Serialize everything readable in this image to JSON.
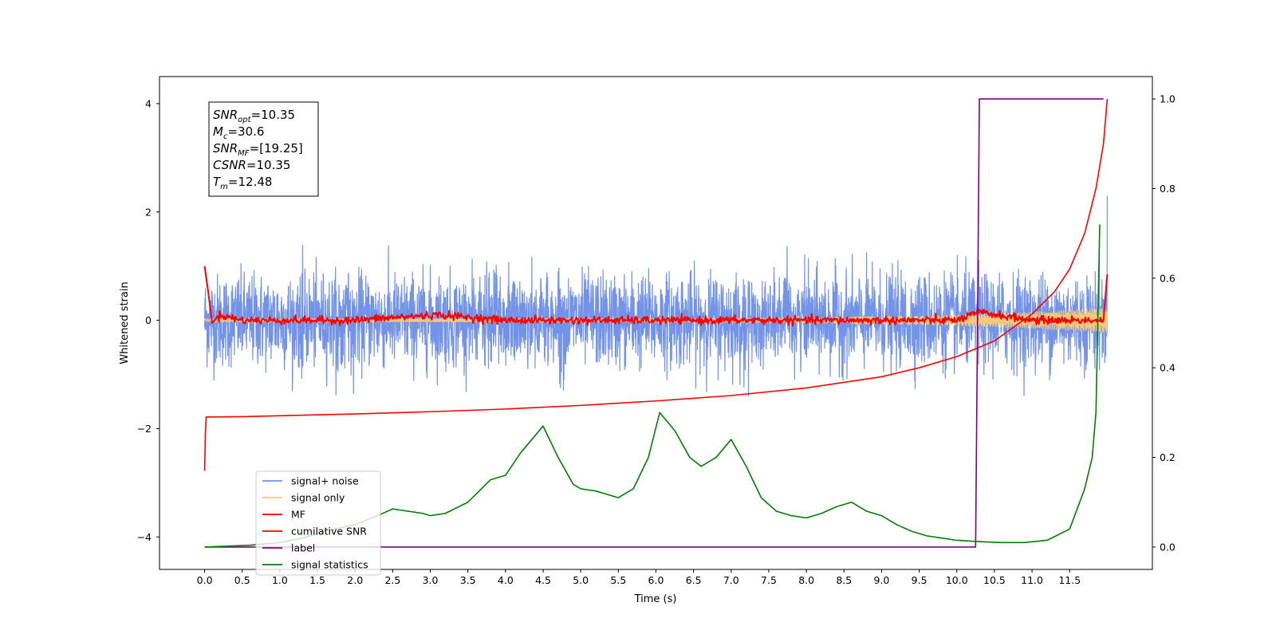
{
  "chart_data": {
    "type": "line",
    "xlabel": "Time (s)",
    "ylabel_left": "Whitened strain",
    "ylabel_right": "",
    "xlim": [
      -0.6,
      12.6
    ],
    "ylim_left": [
      -4.6,
      4.5
    ],
    "ylim_right": [
      -0.05,
      1.05
    ],
    "grid": false,
    "legend_placement": "lower-left",
    "x_ticks": [
      0.0,
      0.5,
      1.0,
      1.5,
      2.0,
      2.5,
      3.0,
      3.5,
      4.0,
      4.5,
      5.0,
      5.5,
      6.0,
      6.5,
      7.0,
      7.5,
      8.0,
      8.5,
      9.0,
      9.5,
      10.0,
      10.5,
      11.0,
      11.5
    ],
    "y_ticks_left": [
      -4,
      -2,
      0,
      2,
      4
    ],
    "y_ticks_right": [
      0.0,
      0.2,
      0.4,
      0.6,
      0.8,
      1.0
    ],
    "annotation_box": [
      {
        "sym": "SNR",
        "sub": "opt",
        "val": "=10.35"
      },
      {
        "sym": "M",
        "sub": "c",
        "val": "=30.6"
      },
      {
        "sym": "SNR",
        "sub": "MF",
        "val": "=[19.25]"
      },
      {
        "sym": "CSNR",
        "sub": "",
        "val": "=10.35"
      },
      {
        "sym": "T",
        "sub": "m",
        "val": "=12.48"
      }
    ],
    "series": [
      {
        "name": "signal+ noise",
        "color": "#7393e8",
        "axis": "left",
        "kind": "noise",
        "x_range": [
          0.0,
          12.0
        ],
        "amplitude": 0.45,
        "peak_abs": 1.4
      },
      {
        "name": "signal only",
        "color": "#f4c97a",
        "axis": "left",
        "kind": "chirp",
        "x_range": [
          0.0,
          12.0
        ],
        "amplitude_end": 0.2
      },
      {
        "name": "MF",
        "color": "#ff0000",
        "axis": "left",
        "kind": "mf",
        "x": [
          0.0,
          0.05,
          0.1,
          0.2,
          0.5,
          1.0,
          2.0,
          2.5,
          3.1,
          4.0,
          5.0,
          6.0,
          7.0,
          8.0,
          9.0,
          10.0,
          10.3,
          11.0,
          11.5,
          11.95,
          12.0
        ],
        "y": [
          1.0,
          0.5,
          -0.05,
          0.1,
          0.0,
          0.0,
          0.0,
          0.05,
          0.1,
          0.0,
          0.0,
          0.0,
          0.0,
          0.0,
          0.0,
          0.0,
          0.15,
          0.0,
          0.0,
          0.0,
          0.85
        ]
      },
      {
        "name": "cumilative SNR",
        "color": "#ff0000",
        "axis": "right",
        "x": [
          0.0,
          0.01,
          0.02,
          0.5,
          1.0,
          2.0,
          3.0,
          4.0,
          5.0,
          6.0,
          7.0,
          8.0,
          9.0,
          9.5,
          10.0,
          10.5,
          11.0,
          11.3,
          11.5,
          11.7,
          11.85,
          11.95,
          12.0
        ],
        "y": [
          0.17,
          0.25,
          0.29,
          0.291,
          0.293,
          0.297,
          0.302,
          0.308,
          0.316,
          0.326,
          0.338,
          0.355,
          0.38,
          0.4,
          0.425,
          0.46,
          0.52,
          0.57,
          0.62,
          0.7,
          0.8,
          0.9,
          1.0
        ]
      },
      {
        "name": "label",
        "color": "#800080",
        "axis": "right",
        "x": [
          0.0,
          10.25,
          10.3,
          11.95
        ],
        "y": [
          0.0,
          0.0,
          1.0,
          1.0
        ]
      },
      {
        "name": "signal statistics",
        "color": "#008000",
        "axis": "right",
        "x": [
          0.0,
          0.3,
          0.6,
          1.0,
          1.3,
          1.6,
          2.0,
          2.3,
          2.5,
          2.7,
          2.9,
          3.0,
          3.2,
          3.5,
          3.8,
          4.0,
          4.2,
          4.35,
          4.5,
          4.7,
          4.9,
          5.0,
          5.2,
          5.5,
          5.7,
          5.9,
          6.05,
          6.25,
          6.45,
          6.6,
          6.8,
          7.0,
          7.2,
          7.4,
          7.6,
          7.8,
          8.0,
          8.2,
          8.4,
          8.6,
          8.8,
          9.0,
          9.2,
          9.4,
          9.6,
          9.8,
          10.0,
          10.3,
          10.6,
          10.9,
          11.2,
          11.5,
          11.7,
          11.8,
          11.85,
          11.88,
          11.9
        ],
        "y": [
          0.0,
          0.002,
          0.004,
          0.01,
          0.02,
          0.035,
          0.05,
          0.07,
          0.085,
          0.08,
          0.075,
          0.07,
          0.075,
          0.1,
          0.15,
          0.16,
          0.21,
          0.24,
          0.27,
          0.2,
          0.14,
          0.13,
          0.125,
          0.11,
          0.13,
          0.2,
          0.3,
          0.26,
          0.2,
          0.18,
          0.2,
          0.24,
          0.18,
          0.11,
          0.08,
          0.07,
          0.065,
          0.075,
          0.09,
          0.1,
          0.08,
          0.07,
          0.05,
          0.035,
          0.025,
          0.02,
          0.015,
          0.012,
          0.01,
          0.01,
          0.015,
          0.04,
          0.13,
          0.2,
          0.3,
          0.55,
          0.72
        ]
      }
    ]
  }
}
